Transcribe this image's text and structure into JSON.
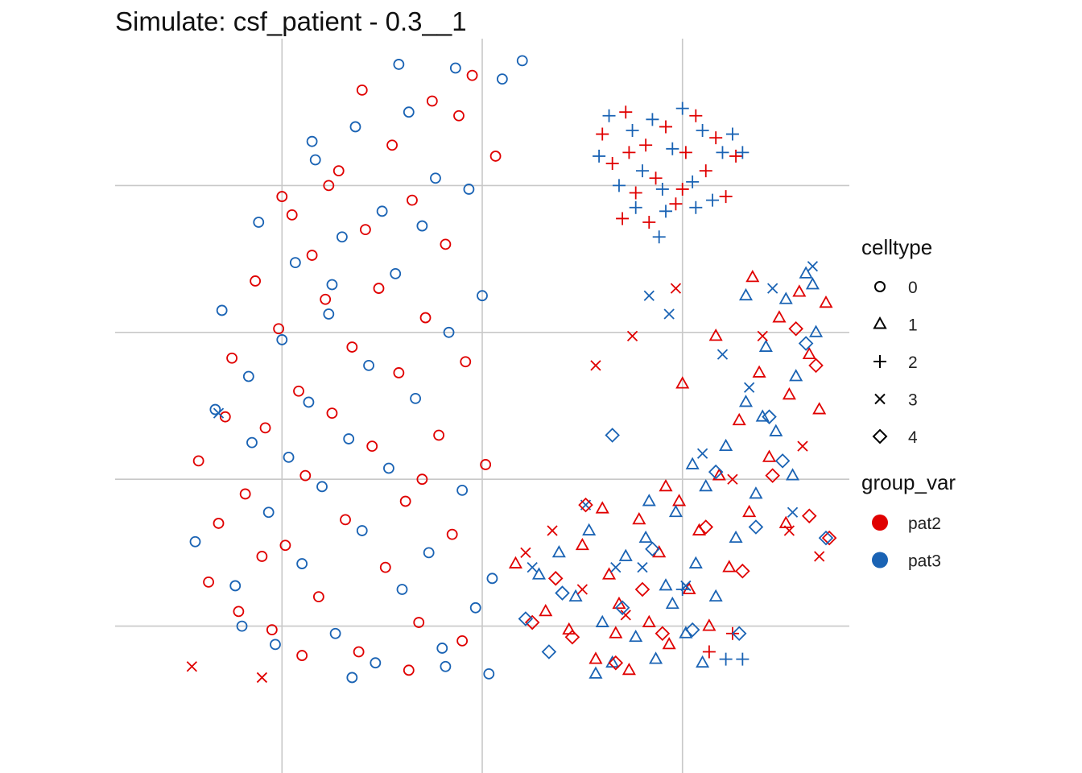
{
  "chart_data": {
    "type": "scatter",
    "title": "Simulate: csf_patient - 0.3__1",
    "xlabel": "",
    "ylabel": "",
    "grid": true,
    "axis_ticks_shown": false,
    "legend_position": "right",
    "xlim": [
      -11,
      11
    ],
    "ylim": [
      -10,
      10
    ],
    "grid_x": [
      -6,
      0,
      6
    ],
    "grid_y": [
      -6,
      -2,
      2,
      6
    ],
    "shape_legend": {
      "title": "celltype",
      "entries": [
        {
          "label": "0",
          "shape": "circle"
        },
        {
          "label": "1",
          "shape": "triangle"
        },
        {
          "label": "2",
          "shape": "plus"
        },
        {
          "label": "3",
          "shape": "cross"
        },
        {
          "label": "4",
          "shape": "diamond"
        }
      ]
    },
    "color_legend": {
      "title": "group_var",
      "entries": [
        {
          "label": "pat2",
          "color": "#e00000"
        },
        {
          "label": "pat3",
          "color": "#1a63b4"
        }
      ]
    },
    "series": [
      {
        "celltype": "0",
        "shape": "circle",
        "pat2": [
          [
            -8.5,
            -1.5
          ],
          [
            -8.2,
            -4.8
          ],
          [
            -7.9,
            -3.2
          ],
          [
            -7.5,
            1.3
          ],
          [
            -7.3,
            -5.6
          ],
          [
            -7.1,
            -2.4
          ],
          [
            -6.8,
            3.4
          ],
          [
            -6.5,
            -0.6
          ],
          [
            -6.3,
            -6.1
          ],
          [
            -6.1,
            2.1
          ],
          [
            -5.9,
            -3.8
          ],
          [
            -5.7,
            5.2
          ],
          [
            -5.5,
            0.4
          ],
          [
            -5.3,
            -1.9
          ],
          [
            -5.1,
            4.1
          ],
          [
            -4.9,
            -5.2
          ],
          [
            -4.7,
            2.9
          ],
          [
            -4.5,
            -0.2
          ],
          [
            -4.3,
            6.4
          ],
          [
            -4.1,
            -3.1
          ],
          [
            -3.9,
            1.6
          ],
          [
            -3.7,
            -6.7
          ],
          [
            -3.5,
            4.8
          ],
          [
            -3.3,
            -1.1
          ],
          [
            -3.1,
            3.2
          ],
          [
            -2.9,
            -4.4
          ],
          [
            -2.7,
            7.1
          ],
          [
            -2.5,
            0.9
          ],
          [
            -2.3,
            -2.6
          ],
          [
            -2.1,
            5.6
          ],
          [
            -1.9,
            -5.9
          ],
          [
            -1.7,
            2.4
          ],
          [
            -1.5,
            8.3
          ],
          [
            -1.3,
            -0.8
          ],
          [
            -1.1,
            4.4
          ],
          [
            -0.9,
            -3.5
          ],
          [
            -0.7,
            7.9
          ],
          [
            -0.5,
            1.2
          ],
          [
            -0.3,
            9.0
          ],
          [
            0.1,
            -1.6
          ],
          [
            0.4,
            6.8
          ],
          [
            -6.6,
            -4.1
          ],
          [
            -5.4,
            -6.8
          ],
          [
            -4.6,
            6.0
          ],
          [
            -2.2,
            -7.2
          ],
          [
            -0.6,
            -6.4
          ],
          [
            -3.6,
            8.6
          ],
          [
            -7.7,
            -0.3
          ],
          [
            -6.0,
            5.7
          ],
          [
            -1.8,
            -2.0
          ]
        ],
        "pat3": [
          [
            -8.6,
            -3.7
          ],
          [
            -8.0,
            -0.1
          ],
          [
            -7.8,
            2.6
          ],
          [
            -7.4,
            -4.9
          ],
          [
            -7.0,
            0.8
          ],
          [
            -6.7,
            5.0
          ],
          [
            -6.4,
            -2.9
          ],
          [
            -6.2,
            -6.5
          ],
          [
            -6.0,
            1.8
          ],
          [
            -5.8,
            -1.4
          ],
          [
            -5.6,
            3.9
          ],
          [
            -5.4,
            -4.3
          ],
          [
            -5.2,
            0.1
          ],
          [
            -5.0,
            6.7
          ],
          [
            -4.8,
            -2.2
          ],
          [
            -4.6,
            2.5
          ],
          [
            -4.4,
            -6.2
          ],
          [
            -4.2,
            4.6
          ],
          [
            -4.0,
            -0.9
          ],
          [
            -3.8,
            7.6
          ],
          [
            -3.6,
            -3.4
          ],
          [
            -3.4,
            1.1
          ],
          [
            -3.2,
            -7.0
          ],
          [
            -3.0,
            5.3
          ],
          [
            -2.8,
            -1.7
          ],
          [
            -2.6,
            3.6
          ],
          [
            -2.4,
            -5.0
          ],
          [
            -2.2,
            8.0
          ],
          [
            -2.0,
            0.2
          ],
          [
            -1.8,
            4.9
          ],
          [
            -1.6,
            -4.0
          ],
          [
            -1.4,
            6.2
          ],
          [
            -1.2,
            -6.6
          ],
          [
            -1.0,
            2.0
          ],
          [
            -0.8,
            9.2
          ],
          [
            -0.6,
            -2.3
          ],
          [
            -0.4,
            5.9
          ],
          [
            -0.2,
            -5.5
          ],
          [
            0.0,
            3.0
          ],
          [
            0.3,
            -4.7
          ],
          [
            1.2,
            9.4
          ],
          [
            0.6,
            8.9
          ],
          [
            -7.2,
            -6.0
          ],
          [
            -3.9,
            -7.4
          ],
          [
            -1.1,
            -7.1
          ],
          [
            -5.1,
            7.2
          ],
          [
            -2.5,
            9.3
          ],
          [
            0.2,
            -7.3
          ],
          [
            -6.9,
            -1.0
          ],
          [
            -4.5,
            3.3
          ]
        ]
      },
      {
        "celltype": "1",
        "shape": "triangle",
        "pat2": [
          [
            1.0,
            -4.3
          ],
          [
            1.9,
            -5.6
          ],
          [
            2.6,
            -6.1
          ],
          [
            3.0,
            -3.8
          ],
          [
            3.4,
            -6.9
          ],
          [
            3.8,
            -4.6
          ],
          [
            4.1,
            -5.4
          ],
          [
            4.4,
            -7.2
          ],
          [
            4.7,
            -3.1
          ],
          [
            5.0,
            -5.9
          ],
          [
            5.3,
            -4.0
          ],
          [
            5.6,
            -6.5
          ],
          [
            5.9,
            -2.6
          ],
          [
            6.2,
            -5.0
          ],
          [
            6.5,
            -3.4
          ],
          [
            6.8,
            -6.0
          ],
          [
            7.1,
            -1.9
          ],
          [
            7.4,
            -4.4
          ],
          [
            7.7,
            -0.4
          ],
          [
            8.0,
            -2.9
          ],
          [
            8.3,
            0.9
          ],
          [
            8.6,
            -1.4
          ],
          [
            8.9,
            2.4
          ],
          [
            9.2,
            0.3
          ],
          [
            9.5,
            3.1
          ],
          [
            9.8,
            1.4
          ],
          [
            10.1,
            -0.1
          ],
          [
            10.3,
            2.8
          ],
          [
            7.0,
            1.9
          ],
          [
            8.1,
            3.5
          ],
          [
            9.1,
            -3.2
          ],
          [
            5.5,
            -2.2
          ],
          [
            3.6,
            -2.8
          ],
          [
            6.0,
            0.6
          ],
          [
            4.0,
            -6.2
          ]
        ],
        "pat3": [
          [
            1.7,
            -4.6
          ],
          [
            2.8,
            -5.2
          ],
          [
            3.2,
            -3.4
          ],
          [
            3.6,
            -5.9
          ],
          [
            3.9,
            -7.0
          ],
          [
            4.3,
            -4.1
          ],
          [
            4.6,
            -6.3
          ],
          [
            4.9,
            -3.6
          ],
          [
            5.2,
            -6.9
          ],
          [
            5.5,
            -4.9
          ],
          [
            5.8,
            -2.9
          ],
          [
            6.1,
            -6.2
          ],
          [
            6.4,
            -4.3
          ],
          [
            6.7,
            -2.2
          ],
          [
            7.0,
            -5.2
          ],
          [
            7.3,
            -1.1
          ],
          [
            7.6,
            -3.6
          ],
          [
            7.9,
            0.1
          ],
          [
            8.2,
            -2.4
          ],
          [
            8.5,
            1.6
          ],
          [
            8.8,
            -0.7
          ],
          [
            9.1,
            2.9
          ],
          [
            9.4,
            0.8
          ],
          [
            9.7,
            3.6
          ],
          [
            10.0,
            2.0
          ],
          [
            8.4,
            -0.3
          ],
          [
            6.3,
            -1.6
          ],
          [
            5.0,
            -2.6
          ],
          [
            9.9,
            3.3
          ],
          [
            7.9,
            3.0
          ],
          [
            6.6,
            -7.0
          ],
          [
            3.4,
            -7.3
          ],
          [
            9.3,
            -1.9
          ],
          [
            2.3,
            -4.0
          ],
          [
            5.7,
            -5.4
          ]
        ]
      },
      {
        "celltype": "2",
        "shape": "plus",
        "pat2": [
          [
            3.6,
            7.4
          ],
          [
            3.9,
            6.6
          ],
          [
            4.3,
            8.0
          ],
          [
            4.6,
            5.8
          ],
          [
            4.9,
            7.1
          ],
          [
            5.2,
            6.2
          ],
          [
            5.5,
            7.6
          ],
          [
            5.8,
            5.5
          ],
          [
            6.1,
            6.9
          ],
          [
            6.4,
            7.9
          ],
          [
            6.7,
            6.4
          ],
          [
            7.0,
            7.3
          ],
          [
            7.3,
            5.7
          ],
          [
            7.6,
            6.8
          ],
          [
            4.2,
            5.1
          ],
          [
            5.0,
            5.0
          ],
          [
            6.0,
            5.9
          ],
          [
            4.4,
            6.9
          ],
          [
            7.5,
            -6.2
          ],
          [
            6.8,
            -6.7
          ]
        ],
        "pat3": [
          [
            3.5,
            6.8
          ],
          [
            3.8,
            7.9
          ],
          [
            4.1,
            6.0
          ],
          [
            4.5,
            7.5
          ],
          [
            4.8,
            6.4
          ],
          [
            5.1,
            7.8
          ],
          [
            5.4,
            5.9
          ],
          [
            5.7,
            7.0
          ],
          [
            6.0,
            8.1
          ],
          [
            6.3,
            6.1
          ],
          [
            6.6,
            7.5
          ],
          [
            6.9,
            5.6
          ],
          [
            7.2,
            6.9
          ],
          [
            7.5,
            7.4
          ],
          [
            7.8,
            6.9
          ],
          [
            4.6,
            5.4
          ],
          [
            5.5,
            5.3
          ],
          [
            6.4,
            5.4
          ],
          [
            5.3,
            4.6
          ],
          [
            7.8,
            -6.9
          ],
          [
            7.3,
            -6.9
          ],
          [
            6.0,
            -5.0
          ]
        ]
      },
      {
        "celltype": "3",
        "shape": "cross",
        "pat2": [
          [
            -8.7,
            -7.1
          ],
          [
            -6.6,
            -7.4
          ],
          [
            1.3,
            -4.0
          ],
          [
            2.1,
            -3.4
          ],
          [
            3.0,
            -5.0
          ],
          [
            3.4,
            1.1
          ],
          [
            4.3,
            -5.7
          ],
          [
            5.8,
            3.2
          ],
          [
            7.5,
            -2.0
          ],
          [
            8.4,
            1.9
          ],
          [
            9.6,
            -1.1
          ],
          [
            10.1,
            -4.1
          ],
          [
            9.2,
            -3.4
          ],
          [
            4.5,
            1.9
          ]
        ],
        "pat3": [
          [
            -7.9,
            -0.2
          ],
          [
            1.5,
            -4.4
          ],
          [
            3.1,
            -2.7
          ],
          [
            4.0,
            -4.4
          ],
          [
            5.0,
            3.0
          ],
          [
            5.6,
            2.5
          ],
          [
            6.1,
            -4.9
          ],
          [
            6.6,
            -1.3
          ],
          [
            7.2,
            1.4
          ],
          [
            8.0,
            0.5
          ],
          [
            8.7,
            3.2
          ],
          [
            9.3,
            -2.9
          ],
          [
            9.9,
            3.8
          ],
          [
            4.8,
            -4.4
          ]
        ]
      },
      {
        "celltype": "4",
        "shape": "diamond",
        "pat2": [
          [
            1.5,
            -5.9
          ],
          [
            2.2,
            -4.7
          ],
          [
            2.7,
            -6.3
          ],
          [
            3.1,
            -2.7
          ],
          [
            4.0,
            -7.0
          ],
          [
            4.8,
            -5.0
          ],
          [
            5.4,
            -6.2
          ],
          [
            6.7,
            -3.3
          ],
          [
            7.8,
            -4.5
          ],
          [
            8.7,
            -1.9
          ],
          [
            9.8,
            -3.0
          ],
          [
            10.4,
            -3.6
          ],
          [
            9.4,
            2.1
          ],
          [
            10.0,
            1.1
          ]
        ],
        "pat3": [
          [
            1.3,
            -5.8
          ],
          [
            2.4,
            -5.1
          ],
          [
            3.9,
            -0.8
          ],
          [
            4.2,
            -5.5
          ],
          [
            5.1,
            -3.9
          ],
          [
            6.3,
            -6.1
          ],
          [
            7.0,
            -1.8
          ],
          [
            8.2,
            -3.3
          ],
          [
            9.0,
            -1.5
          ],
          [
            9.7,
            1.7
          ],
          [
            10.3,
            -3.6
          ],
          [
            8.6,
            -0.3
          ],
          [
            2.0,
            -6.7
          ],
          [
            7.7,
            -6.2
          ]
        ]
      }
    ]
  }
}
